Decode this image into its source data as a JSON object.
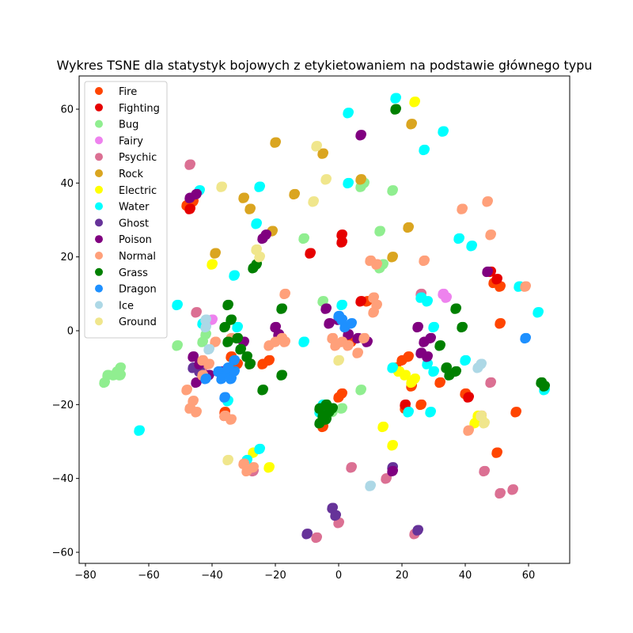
{
  "chart_data": {
    "type": "scatter",
    "title": "Wykres TSNE dla statystyk bojowych z etykietowaniem na podstawie głównego typu",
    "xlabel": "",
    "ylabel": "",
    "xlim": [
      -82,
      73
    ],
    "ylim": [
      -63,
      69
    ],
    "xticks": [
      -80,
      -60,
      -40,
      -20,
      0,
      20,
      40,
      60
    ],
    "yticks": [
      -60,
      -40,
      -20,
      0,
      20,
      40,
      60
    ],
    "xtick_labels": [
      "−80",
      "−60",
      "−40",
      "−20",
      "0",
      "20",
      "40",
      "60"
    ],
    "ytick_labels": [
      "−60",
      "−40",
      "−20",
      "0",
      "20",
      "40",
      "60"
    ],
    "grid": false,
    "legend_position": "top-left",
    "series": [
      {
        "name": "Fire",
        "color": "#ff4500",
        "points": [
          [
            -48,
            34
          ],
          [
            -46,
            35
          ],
          [
            -34,
            -7
          ],
          [
            -32,
            -9
          ],
          [
            -24,
            -9
          ],
          [
            -22,
            -8
          ],
          [
            4,
            -3
          ],
          [
            0,
            -18
          ],
          [
            1,
            -17
          ],
          [
            9,
            8
          ],
          [
            18,
            -10
          ],
          [
            20,
            -8
          ],
          [
            22,
            -7
          ],
          [
            23,
            -15
          ],
          [
            21,
            -21
          ],
          [
            26,
            -20
          ],
          [
            32,
            -14
          ],
          [
            40,
            -17
          ],
          [
            49,
            13
          ],
          [
            51,
            12
          ],
          [
            51,
            2
          ],
          [
            45,
            -23
          ],
          [
            56,
            -22
          ],
          [
            50,
            -33
          ],
          [
            -5,
            -26
          ],
          [
            -36,
            -22
          ]
        ]
      },
      {
        "name": "Fighting",
        "color": "#e60000",
        "points": [
          [
            -47,
            33
          ],
          [
            -9,
            21
          ],
          [
            1,
            26
          ],
          [
            1,
            24
          ],
          [
            7,
            8
          ],
          [
            -36,
            -23
          ],
          [
            21,
            -20
          ],
          [
            41,
            -18
          ],
          [
            48,
            16
          ],
          [
            50,
            14
          ],
          [
            -28,
            -9
          ]
        ]
      },
      {
        "name": "Bug",
        "color": "#90ee90",
        "points": [
          [
            -74,
            -14
          ],
          [
            -73,
            -12
          ],
          [
            -71,
            -12
          ],
          [
            -70,
            -11
          ],
          [
            -69,
            -10
          ],
          [
            -69,
            -12
          ],
          [
            -51,
            -4
          ],
          [
            -43,
            -3
          ],
          [
            -42,
            -1
          ],
          [
            -11,
            25
          ],
          [
            -5,
            8
          ],
          [
            7,
            39
          ],
          [
            8,
            40
          ],
          [
            13,
            17
          ],
          [
            14,
            18
          ],
          [
            13,
            27
          ],
          [
            17,
            38
          ],
          [
            7,
            -16
          ],
          [
            1,
            -21
          ],
          [
            -2,
            -22
          ]
        ]
      },
      {
        "name": "Fairy",
        "color": "#ee82ee",
        "points": [
          [
            -40,
            3
          ],
          [
            34,
            9
          ],
          [
            33,
            10
          ]
        ]
      },
      {
        "name": "Psychic",
        "color": "#db7093",
        "points": [
          [
            -47,
            45
          ],
          [
            -45,
            5
          ],
          [
            -43,
            -10
          ],
          [
            -27,
            -38
          ],
          [
            4,
            -37
          ],
          [
            15,
            -40
          ],
          [
            24,
            -55
          ],
          [
            26,
            10
          ],
          [
            46,
            -38
          ],
          [
            51,
            -44
          ],
          [
            55,
            -43
          ],
          [
            -7,
            -56
          ],
          [
            0,
            -52
          ],
          [
            48,
            -14
          ]
        ]
      },
      {
        "name": "Rock",
        "color": "#daa520",
        "points": [
          [
            -20,
            51
          ],
          [
            -28,
            33
          ],
          [
            -21,
            27
          ],
          [
            -14,
            37
          ],
          [
            -39,
            21
          ],
          [
            -30,
            36
          ],
          [
            -5,
            48
          ],
          [
            7,
            41
          ],
          [
            23,
            56
          ],
          [
            22,
            28
          ],
          [
            17,
            20
          ]
        ]
      },
      {
        "name": "Electric",
        "color": "#ffff00",
        "points": [
          [
            -40,
            18
          ],
          [
            -27,
            -33
          ],
          [
            -22,
            -37
          ],
          [
            14,
            -26
          ],
          [
            17,
            -31
          ],
          [
            19,
            -11
          ],
          [
            21,
            -12
          ],
          [
            24,
            -13
          ],
          [
            23,
            -14
          ],
          [
            24,
            62
          ],
          [
            44,
            -23
          ],
          [
            45,
            -24
          ],
          [
            43,
            -25
          ]
        ]
      },
      {
        "name": "Water",
        "color": "#00ffff",
        "points": [
          [
            -63,
            -27
          ],
          [
            -51,
            7
          ],
          [
            -44,
            38
          ],
          [
            -43,
            2
          ],
          [
            -33,
            15
          ],
          [
            -32,
            1
          ],
          [
            -25,
            39
          ],
          [
            -26,
            29
          ],
          [
            -25,
            -32
          ],
          [
            -29,
            -35
          ],
          [
            -11,
            -3
          ],
          [
            -5,
            -20
          ],
          [
            -6,
            -22
          ],
          [
            1,
            7
          ],
          [
            3,
            59
          ],
          [
            3,
            40
          ],
          [
            18,
            63
          ],
          [
            27,
            49
          ],
          [
            26,
            9
          ],
          [
            28,
            8
          ],
          [
            30,
            1
          ],
          [
            28,
            -9
          ],
          [
            30,
            -11
          ],
          [
            33,
            54
          ],
          [
            38,
            25
          ],
          [
            40,
            -8
          ],
          [
            42,
            23
          ],
          [
            57,
            12
          ],
          [
            63,
            5
          ],
          [
            65,
            -16
          ],
          [
            -35,
            -19
          ],
          [
            22,
            -22
          ],
          [
            29,
            -22
          ],
          [
            17,
            -10
          ]
        ]
      },
      {
        "name": "Ghost",
        "color": "#663399",
        "points": [
          [
            -46,
            -10
          ],
          [
            -44,
            -11
          ],
          [
            -10,
            -55
          ],
          [
            -2,
            -48
          ],
          [
            -1,
            -50
          ],
          [
            17,
            -37
          ],
          [
            25,
            -54
          ]
        ]
      },
      {
        "name": "Poison",
        "color": "#800080",
        "points": [
          [
            -47,
            36
          ],
          [
            -45,
            37
          ],
          [
            -24,
            25
          ],
          [
            -23,
            26
          ],
          [
            -46,
            -7
          ],
          [
            -44,
            -9
          ],
          [
            -45,
            -14
          ],
          [
            -41,
            -12
          ],
          [
            -37,
            -11
          ],
          [
            -20,
            1
          ],
          [
            -19,
            -1
          ],
          [
            -4,
            6
          ],
          [
            0,
            3
          ],
          [
            -3,
            2
          ],
          [
            3,
            -1
          ],
          [
            6,
            -2
          ],
          [
            7,
            53
          ],
          [
            9,
            -3
          ],
          [
            25,
            1
          ],
          [
            27,
            -3
          ],
          [
            26,
            -6
          ],
          [
            28,
            -7
          ],
          [
            29,
            -2
          ],
          [
            47,
            16
          ],
          [
            17,
            -38
          ],
          [
            -30,
            -3
          ]
        ]
      },
      {
        "name": "Normal",
        "color": "#ffa07a",
        "points": [
          [
            -48,
            -16
          ],
          [
            -46,
            -19
          ],
          [
            -47,
            -21
          ],
          [
            -45,
            -22
          ],
          [
            -43,
            -12
          ],
          [
            -43,
            -8
          ],
          [
            -41,
            -9
          ],
          [
            -39,
            -3
          ],
          [
            -34,
            -2
          ],
          [
            -36,
            -23
          ],
          [
            -34,
            -24
          ],
          [
            -30,
            -36
          ],
          [
            -29,
            -38
          ],
          [
            -27,
            -37
          ],
          [
            -22,
            -4
          ],
          [
            -20,
            -3
          ],
          [
            -18,
            -2
          ],
          [
            -17,
            -3
          ],
          [
            -17,
            10
          ],
          [
            -2,
            -2
          ],
          [
            1,
            -3
          ],
          [
            -1,
            -4
          ],
          [
            3,
            -4
          ],
          [
            6,
            -6
          ],
          [
            10,
            19
          ],
          [
            12,
            18
          ],
          [
            11,
            5
          ],
          [
            12,
            7
          ],
          [
            11,
            9
          ],
          [
            27,
            19
          ],
          [
            39,
            33
          ],
          [
            41,
            -27
          ],
          [
            47,
            35
          ],
          [
            48,
            26
          ],
          [
            59,
            12
          ],
          [
            8,
            -2
          ]
        ]
      },
      {
        "name": "Grass",
        "color": "#008000",
        "points": [
          [
            -35,
            7
          ],
          [
            -34,
            3
          ],
          [
            -35,
            -3
          ],
          [
            -36,
            1
          ],
          [
            -32,
            -2
          ],
          [
            -31,
            -5
          ],
          [
            -29,
            -7
          ],
          [
            -28,
            -9
          ],
          [
            -27,
            17
          ],
          [
            -26,
            18
          ],
          [
            -24,
            -16
          ],
          [
            -18,
            -12
          ],
          [
            -18,
            6
          ],
          [
            -6,
            -21
          ],
          [
            -5,
            -23
          ],
          [
            -4,
            -20
          ],
          [
            -3,
            -22
          ],
          [
            -2,
            -21
          ],
          [
            -6,
            -25
          ],
          [
            -4,
            -24
          ],
          [
            18,
            60
          ],
          [
            32,
            -4
          ],
          [
            34,
            -10
          ],
          [
            35,
            -12
          ],
          [
            37,
            -11
          ],
          [
            37,
            6
          ],
          [
            39,
            1
          ],
          [
            64,
            -14
          ],
          [
            65,
            -15
          ]
        ]
      },
      {
        "name": "Dragon",
        "color": "#1e90ff",
        "points": [
          [
            -38,
            -11
          ],
          [
            -36,
            -12
          ],
          [
            -34,
            -13
          ],
          [
            -33,
            -11
          ],
          [
            -35,
            -10
          ],
          [
            -37,
            -13
          ],
          [
            -33,
            -8
          ],
          [
            -42,
            -13
          ],
          [
            -36,
            -18
          ],
          [
            0,
            4
          ],
          [
            1,
            3
          ],
          [
            2,
            1
          ],
          [
            4,
            2
          ],
          [
            59,
            -2
          ]
        ]
      },
      {
        "name": "Ice",
        "color": "#add8e6",
        "points": [
          [
            -42,
            3
          ],
          [
            -42,
            1
          ],
          [
            -41,
            -5
          ],
          [
            10,
            -42
          ],
          [
            44,
            -10
          ],
          [
            45,
            -9
          ]
        ]
      },
      {
        "name": "Ground",
        "color": "#f0e68c",
        "points": [
          [
            -37,
            39
          ],
          [
            -35,
            -35
          ],
          [
            -26,
            22
          ],
          [
            -25,
            20
          ],
          [
            -8,
            35
          ],
          [
            -7,
            50
          ],
          [
            -4,
            41
          ],
          [
            0,
            -8
          ],
          [
            45,
            -23
          ],
          [
            46,
            -25
          ]
        ]
      }
    ]
  }
}
